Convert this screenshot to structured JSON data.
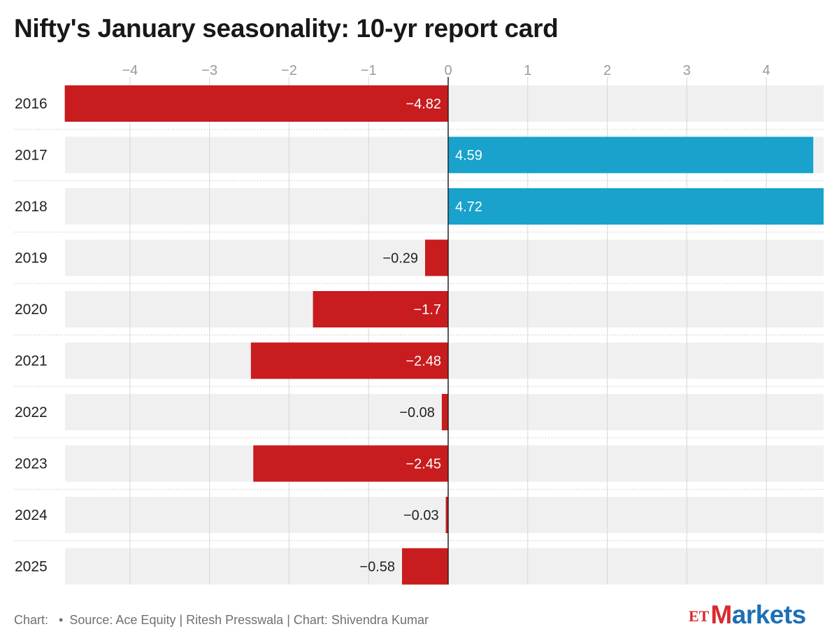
{
  "title": "Nifty's January seasonality: 10-yr report card",
  "footer": {
    "chart_label": "Chart:",
    "source": "Source: Ace Equity | Ritesh Presswala | Chart: Shivendra Kumar"
  },
  "logo": {
    "et": "ET",
    "markets_first": "M",
    "markets_rest": "arkets"
  },
  "colors": {
    "positive": "#18a2cc",
    "negative": "#c81c1e",
    "row_background": "#f0f0f0",
    "gridline": "#d6d6d6",
    "tick_label": "#9a9a9a",
    "category_label": "#222222"
  },
  "chart_data": {
    "type": "bar",
    "orientation": "horizontal",
    "categories": [
      "2016",
      "2017",
      "2018",
      "2019",
      "2020",
      "2021",
      "2022",
      "2023",
      "2024",
      "2025"
    ],
    "values": [
      -4.82,
      4.59,
      4.72,
      -0.29,
      -1.7,
      -2.48,
      -0.08,
      -2.45,
      -0.03,
      -0.58
    ],
    "value_labels": [
      "−4.82",
      "4.59",
      "4.72",
      "−0.29",
      "−1.7",
      "−2.48",
      "−0.08",
      "−2.45",
      "−0.03",
      "−0.58"
    ],
    "xticks": [
      -4,
      -3,
      -2,
      -1,
      0,
      1,
      2,
      3,
      4
    ],
    "xtick_labels": [
      "−4",
      "−3",
      "−2",
      "−1",
      "0",
      "1",
      "2",
      "3",
      "4"
    ],
    "xlim": [
      -4.82,
      4.72
    ],
    "xaxis_position": "top",
    "grid": true,
    "legend": "none"
  }
}
